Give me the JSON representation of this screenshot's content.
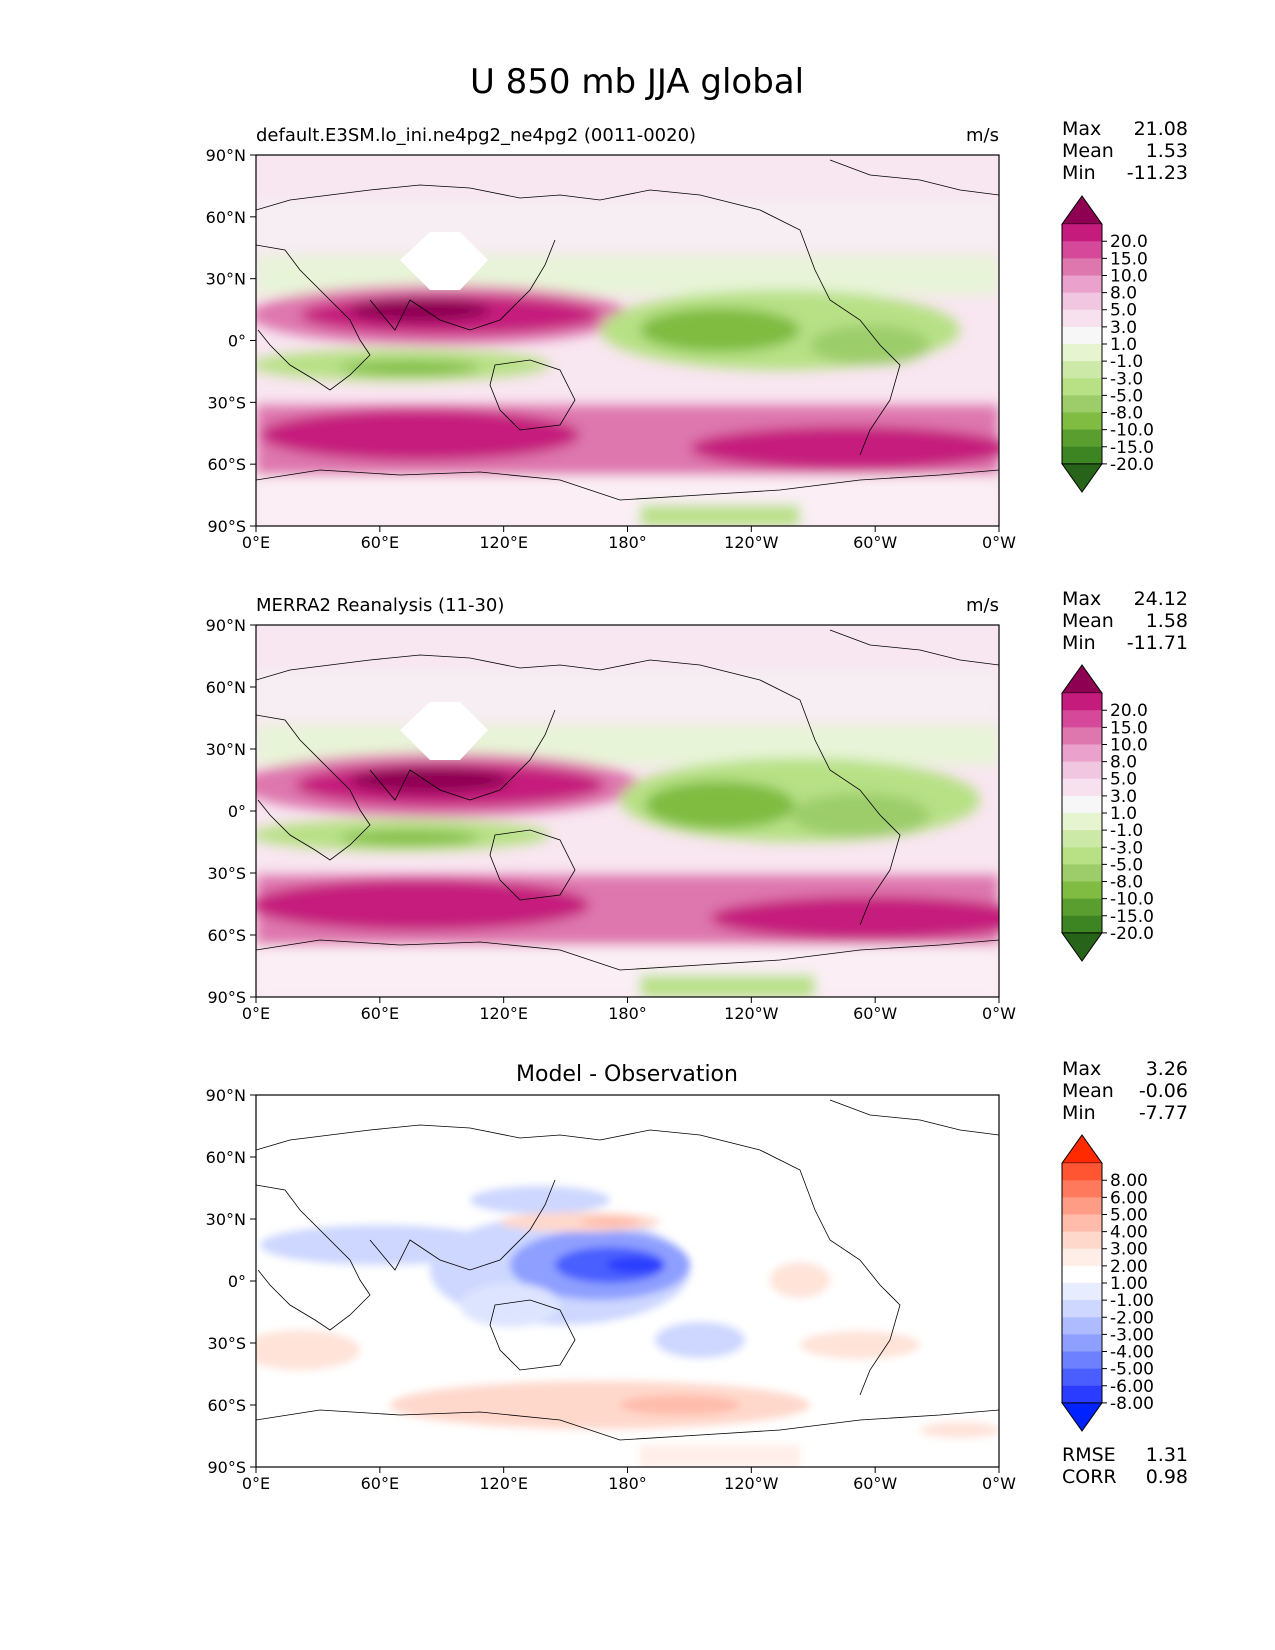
{
  "title": "U 850 mb JJA global",
  "panels": [
    {
      "left_title": "default.E3SM.lo_ini.ne4pg2_ne4pg2 (0011-0020)",
      "right_title": "m/s",
      "stats": [
        {
          "label": "Max",
          "value": "21.08"
        },
        {
          "label": "Mean",
          "value": "1.53"
        },
        {
          "label": "Min",
          "value": "-11.23"
        }
      ],
      "colorbar": "field"
    },
    {
      "left_title": "MERRA2 Reanalysis (11-30)",
      "right_title": "m/s",
      "stats": [
        {
          "label": "Max",
          "value": "24.12"
        },
        {
          "label": "Mean",
          "value": "1.58"
        },
        {
          "label": "Min",
          "value": "-11.71"
        }
      ],
      "colorbar": "field"
    },
    {
      "center_title": "Model - Observation",
      "stats": [
        {
          "label": "Max",
          "value": "3.26"
        },
        {
          "label": "Mean",
          "value": "-0.06"
        },
        {
          "label": "Min",
          "value": "-7.77"
        }
      ],
      "colorbar": "diff",
      "metrics": [
        {
          "label": "RMSE",
          "value": "1.31"
        },
        {
          "label": "CORR",
          "value": "0.98"
        }
      ]
    }
  ],
  "map": {
    "x_ticks": [
      "0°E",
      "60°E",
      "120°E",
      "180°",
      "120°W",
      "60°W",
      "0°W"
    ],
    "y_ticks": [
      "90°N",
      "60°N",
      "30°N",
      "0°",
      "30°S",
      "60°S",
      "90°S"
    ]
  },
  "colorbars": {
    "field": {
      "labels": [
        "20.0",
        "15.0",
        "10.0",
        "8.0",
        "5.0",
        "3.0",
        "1.0",
        "-1.0",
        "-3.0",
        "-5.0",
        "-8.0",
        "-10.0",
        "-15.0",
        "-20.0"
      ],
      "colors": [
        "#8e0152",
        "#c51b7d",
        "#d6499a",
        "#de77ae",
        "#eaa1cb",
        "#f1c6e0",
        "#f8e1ee",
        "#f7f7f7",
        "#e6f5d0",
        "#cde9a8",
        "#b8e186",
        "#9ccd6a",
        "#7fbc41",
        "#5a9e30",
        "#3d8523",
        "#276419"
      ]
    },
    "diff": {
      "labels": [
        "8.00",
        "6.00",
        "5.00",
        "4.00",
        "3.00",
        "2.00",
        "1.00",
        "-1.00",
        "-2.00",
        "-3.00",
        "-4.00",
        "-5.00",
        "-6.00",
        "-8.00"
      ],
      "colors": [
        "#ff2a00",
        "#ff5533",
        "#ff7a5c",
        "#ff9c85",
        "#ffbcab",
        "#ffd8cc",
        "#ffeee8",
        "#ffffff",
        "#e7ecff",
        "#cdd7ff",
        "#aebcff",
        "#8e9fff",
        "#6d80ff",
        "#4a5eff",
        "#2a3cff",
        "#0022ff"
      ]
    }
  }
}
